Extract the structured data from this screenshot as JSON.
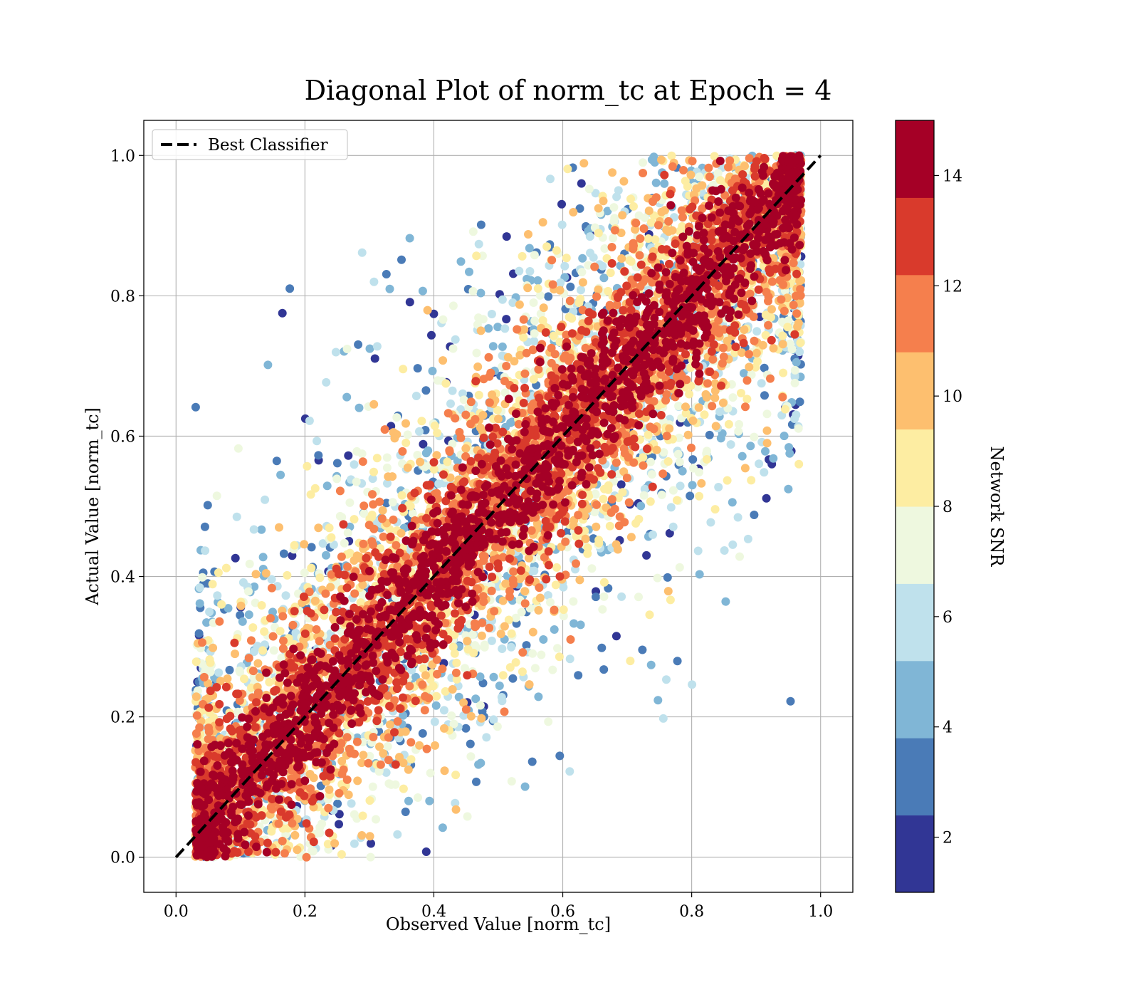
{
  "chart_data": {
    "type": "scatter",
    "title": "Diagonal Plot of norm_tc at Epoch = 4",
    "xlabel": "Observed Value [norm_tc]",
    "ylabel": "Actual Value [norm_tc]",
    "xlim": [
      -0.05,
      1.05
    ],
    "ylim": [
      -0.05,
      1.05
    ],
    "xticks": [
      0.0,
      0.2,
      0.4,
      0.6,
      0.8,
      1.0
    ],
    "yticks": [
      0.0,
      0.2,
      0.4,
      0.6,
      0.8,
      1.0
    ],
    "xtick_labels": [
      "0.0",
      "0.2",
      "0.4",
      "0.6",
      "0.8",
      "1.0"
    ],
    "ytick_labels": [
      "0.0",
      "0.2",
      "0.4",
      "0.6",
      "0.8",
      "1.0"
    ],
    "grid": true,
    "legend": {
      "placement": "top-left",
      "entries": [
        {
          "label": "Best Classifier",
          "style": "black dashed line"
        }
      ]
    },
    "reference_line": {
      "name": "Best Classifier",
      "x": [
        0.0,
        1.0
      ],
      "y": [
        0.0,
        1.0
      ],
      "color": "#000000",
      "style": "dashed"
    },
    "colorbar": {
      "label": "Network SNR",
      "range": [
        1,
        15
      ],
      "ticks": [
        2,
        4,
        6,
        8,
        10,
        12,
        14
      ],
      "tick_labels": [
        "2",
        "4",
        "6",
        "8",
        "10",
        "12",
        "14"
      ],
      "colormap": "RdYlBu_r",
      "bins": [
        {
          "from": 1.0,
          "to": 2.4,
          "color": "#313695"
        },
        {
          "from": 2.4,
          "to": 3.8,
          "color": "#4a7bb7"
        },
        {
          "from": 3.8,
          "to": 5.2,
          "color": "#80b6d6"
        },
        {
          "from": 5.2,
          "to": 6.6,
          "color": "#bfe1ec"
        },
        {
          "from": 6.6,
          "to": 8.0,
          "color": "#eef8df"
        },
        {
          "from": 8.0,
          "to": 9.4,
          "color": "#fdeda2"
        },
        {
          "from": 9.4,
          "to": 10.8,
          "color": "#fdbf6f"
        },
        {
          "from": 10.8,
          "to": 12.2,
          "color": "#f57f4d"
        },
        {
          "from": 12.2,
          "to": 13.6,
          "color": "#d93a2c"
        },
        {
          "from": 13.6,
          "to": 15.0,
          "color": "#a50026"
        }
      ]
    },
    "data_summary": {
      "description": "dense scatter of many points; high-SNR points (>=13.6) form a diagonal band around y = x, lower-SNR points scatter farther from the diagonal",
      "observed_range": [
        0.03,
        0.97
      ],
      "actual_range": [
        0.0,
        1.0
      ]
    }
  }
}
